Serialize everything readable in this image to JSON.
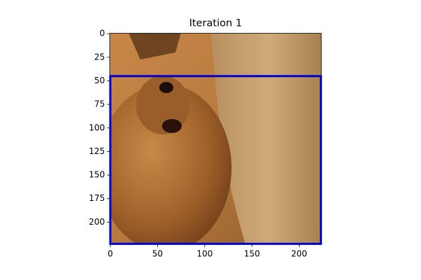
{
  "chart_data": {
    "type": "image",
    "title": "Iteration 1",
    "xlim": [
      -0.5,
      223.5
    ],
    "ylim": [
      223.5,
      -0.5
    ],
    "xticks": [
      0,
      50,
      100,
      150,
      200
    ],
    "yticks": [
      0,
      25,
      50,
      75,
      100,
      125,
      150,
      175,
      200
    ],
    "box": {
      "x": 0,
      "y": 45,
      "width": 223,
      "height": 178,
      "color": "#0000d0"
    }
  }
}
